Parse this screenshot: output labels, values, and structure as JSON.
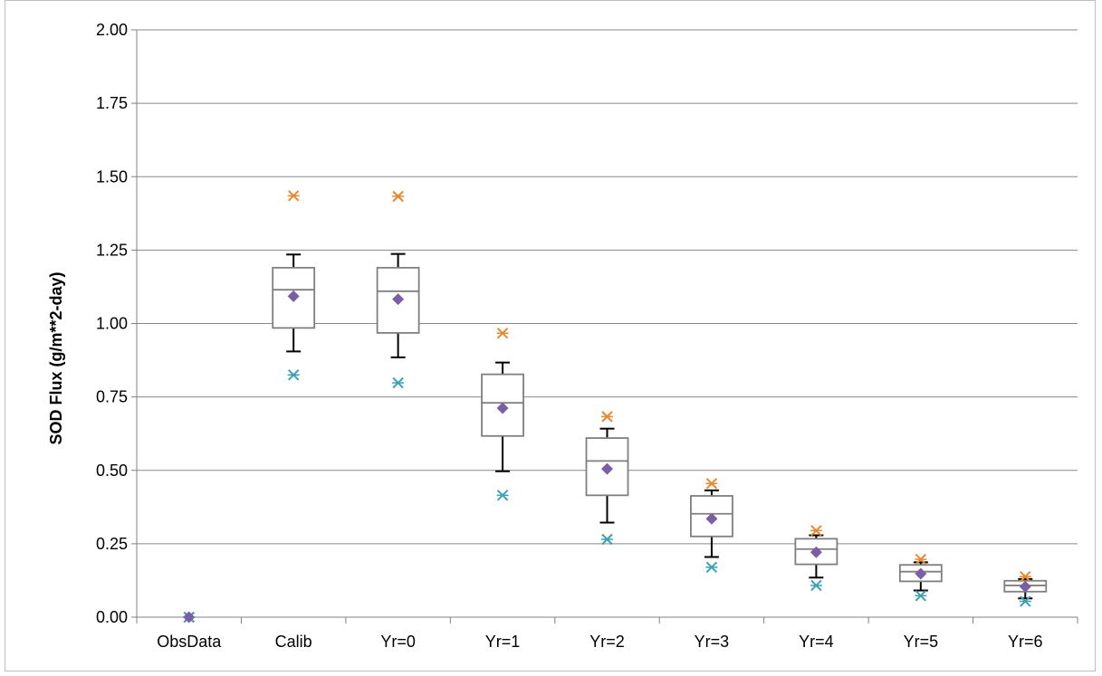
{
  "chart_data": {
    "type": "box",
    "title": "",
    "xlabel": "",
    "ylabel": "SOD Flux (g/m**2-day)",
    "ylim": [
      0,
      2.0
    ],
    "yticks": [
      "0.00",
      "0.25",
      "0.50",
      "0.75",
      "1.00",
      "1.25",
      "1.50",
      "1.75",
      "2.00"
    ],
    "grid": "horizontal",
    "legend": "none",
    "categories": [
      "ObsData",
      "Calib",
      "Yr=0",
      "Yr=1",
      "Yr=2",
      "Yr=3",
      "Yr=4",
      "Yr=5",
      "Yr=6"
    ],
    "boxes": [
      {
        "category": "ObsData",
        "whisker_low": null,
        "q1": null,
        "median": null,
        "q3": null,
        "whisker_high": null,
        "mean": 0.0,
        "min": 0.0,
        "max": 0.0
      },
      {
        "category": "Calib",
        "whisker_low": 0.905,
        "q1": 0.985,
        "median": 1.115,
        "q3": 1.19,
        "whisker_high": 1.235,
        "mean": 1.093,
        "min": 0.825,
        "max": 1.435
      },
      {
        "category": "Yr=0",
        "whisker_low": 0.885,
        "q1": 0.968,
        "median": 1.11,
        "q3": 1.19,
        "whisker_high": 1.237,
        "mean": 1.083,
        "min": 0.798,
        "max": 1.433
      },
      {
        "category": "Yr=1",
        "whisker_low": 0.497,
        "q1": 0.617,
        "median": 0.73,
        "q3": 0.827,
        "whisker_high": 0.867,
        "mean": 0.712,
        "min": 0.415,
        "max": 0.967
      },
      {
        "category": "Yr=2",
        "whisker_low": 0.322,
        "q1": 0.415,
        "median": 0.532,
        "q3": 0.61,
        "whisker_high": 0.642,
        "mean": 0.505,
        "min": 0.265,
        "max": 0.683
      },
      {
        "category": "Yr=3",
        "whisker_low": 0.205,
        "q1": 0.275,
        "median": 0.352,
        "q3": 0.413,
        "whisker_high": 0.432,
        "mean": 0.335,
        "min": 0.17,
        "max": 0.455
      },
      {
        "category": "Yr=4",
        "whisker_low": 0.135,
        "q1": 0.18,
        "median": 0.232,
        "q3": 0.267,
        "whisker_high": 0.279,
        "mean": 0.221,
        "min": 0.108,
        "max": 0.295
      },
      {
        "category": "Yr=5",
        "whisker_low": 0.091,
        "q1": 0.122,
        "median": 0.155,
        "q3": 0.178,
        "whisker_high": 0.187,
        "mean": 0.148,
        "min": 0.073,
        "max": 0.197
      },
      {
        "category": "Yr=6",
        "whisker_low": 0.064,
        "q1": 0.087,
        "median": 0.108,
        "q3": 0.124,
        "whisker_high": 0.13,
        "mean": 0.104,
        "min": 0.054,
        "max": 0.138
      }
    ],
    "colors": {
      "gridline": "#888888",
      "box": "#7f7f7f",
      "whisker": "#000000",
      "mean_marker": "#7b5fa6",
      "max_marker": "#e8872e",
      "min_marker": "#3aa0b4",
      "axis": "#808080"
    }
  }
}
